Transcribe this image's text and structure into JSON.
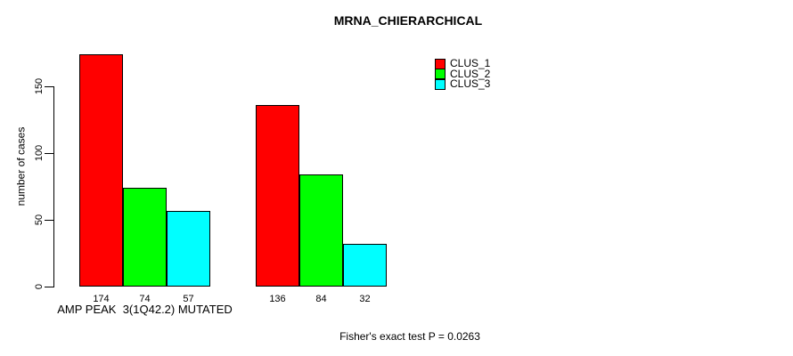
{
  "chart_data": {
    "type": "bar",
    "title": "MRNA_CHIERARCHICAL",
    "xlabel": "",
    "ylabel": "number of cases",
    "ylim": [
      0,
      175
    ],
    "yticks": [
      0,
      50,
      100,
      150
    ],
    "categories": [
      "AMP PEAK  3(1Q42.2) MUTATED",
      ""
    ],
    "series": [
      {
        "name": "CLUS_1",
        "color": "#ff0000",
        "values": [
          174,
          136
        ]
      },
      {
        "name": "CLUS_2",
        "color": "#00ff00",
        "values": [
          74,
          84
        ]
      },
      {
        "name": "CLUS_3",
        "color": "#00ffff",
        "values": [
          57,
          32
        ]
      }
    ],
    "bar_value_labels": [
      [
        174,
        74,
        57
      ],
      [
        136,
        84,
        32
      ]
    ],
    "legend_position": "top-right",
    "grid": false,
    "annotation": "Fisher's exact test P = 0.0263"
  }
}
